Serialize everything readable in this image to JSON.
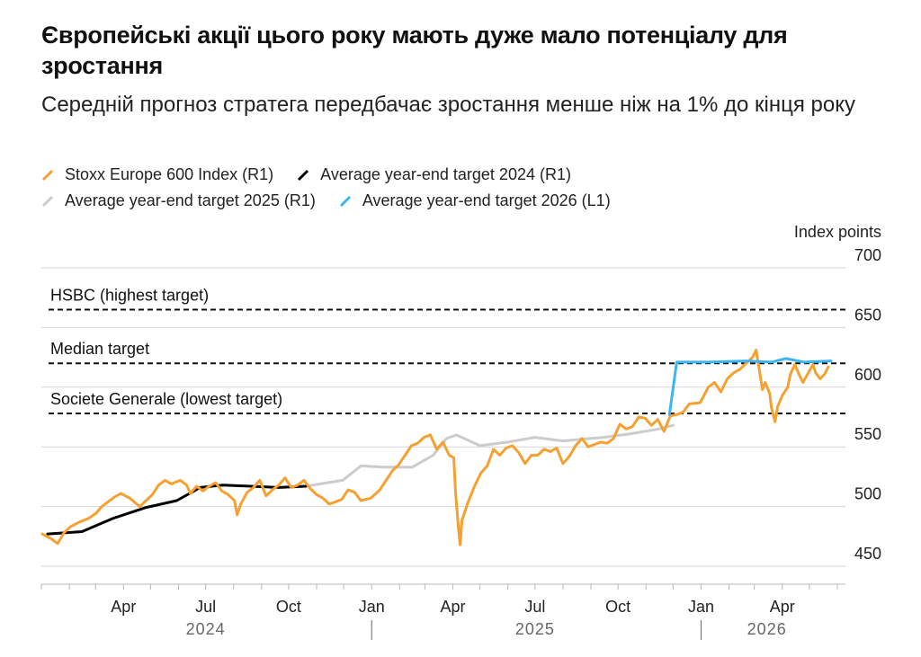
{
  "chart_data": {
    "type": "line",
    "title": "Європейські акції цього року мають дуже мало потенціалу для зростання",
    "subtitle": "Середній прогноз стратега передбачає зростання менше ніж на 1% до кінця року",
    "unit_label": "Index points",
    "y_ticks": [
      "700",
      "650",
      "600",
      "550",
      "500",
      "450"
    ],
    "y_range": [
      445,
      700
    ],
    "y_ticks_values": [
      700,
      650,
      600,
      550,
      500,
      450
    ],
    "x_range": [
      "2024-01-01",
      "2026-06-10"
    ],
    "x_ticks": [
      {
        "label": "Apr",
        "date": "2024-04-01"
      },
      {
        "label": "Jul",
        "date": "2024-07-01"
      },
      {
        "label": "Oct",
        "date": "2024-10-01"
      },
      {
        "label": "Jan",
        "date": "2025-01-01"
      },
      {
        "label": "Apr",
        "date": "2025-04-01"
      },
      {
        "label": "Jul",
        "date": "2025-07-01"
      },
      {
        "label": "Oct",
        "date": "2025-10-01"
      },
      {
        "label": "Jan",
        "date": "2026-01-01"
      },
      {
        "label": "Apr",
        "date": "2026-04-01"
      }
    ],
    "years": [
      {
        "label": "2024",
        "date": "2024-07-01"
      },
      {
        "label": "2025",
        "date": "2025-07-01"
      },
      {
        "label": "2026",
        "date": "2026-03-15"
      }
    ],
    "year_separators": [
      "2025-01-01",
      "2026-01-01"
    ],
    "grid": true,
    "legend_position": "top-left",
    "legend": [
      {
        "label": "Stoxx Europe 600 Index (R1)",
        "color": "#f5a030"
      },
      {
        "label": "Average year-end target 2024 (R1)",
        "color": "#000000"
      },
      {
        "label": "Average year-end target 2025 (R1)",
        "color": "#cccccc"
      },
      {
        "label": "Average year-end target 2026 (L1)",
        "color": "#3ab4f2"
      }
    ],
    "reference_lines": [
      {
        "label": "HSBC (highest target)",
        "value": 665
      },
      {
        "label": "Median target",
        "value": 620
      },
      {
        "label": "Societe Generale (lowest target)",
        "value": 578
      }
    ],
    "series": [
      {
        "name": "Stoxx Europe 600 Index (R1)",
        "color": "#f5a030",
        "points": [
          [
            "2024-01-02",
            477
          ],
          [
            "2024-01-12",
            473
          ],
          [
            "2024-01-19",
            469
          ],
          [
            "2024-01-26",
            478
          ],
          [
            "2024-02-02",
            483
          ],
          [
            "2024-02-12",
            487
          ],
          [
            "2024-02-22",
            490
          ],
          [
            "2024-03-01",
            494
          ],
          [
            "2024-03-08",
            500
          ],
          [
            "2024-03-15",
            504
          ],
          [
            "2024-03-22",
            508
          ],
          [
            "2024-03-29",
            511
          ],
          [
            "2024-04-08",
            507
          ],
          [
            "2024-04-19",
            500
          ],
          [
            "2024-04-26",
            505
          ],
          [
            "2024-05-03",
            510
          ],
          [
            "2024-05-10",
            518
          ],
          [
            "2024-05-17",
            522
          ],
          [
            "2024-05-24",
            519
          ],
          [
            "2024-06-03",
            522
          ],
          [
            "2024-06-10",
            518
          ],
          [
            "2024-06-14",
            511
          ],
          [
            "2024-06-21",
            517
          ],
          [
            "2024-06-28",
            513
          ],
          [
            "2024-07-05",
            517
          ],
          [
            "2024-07-12",
            520
          ],
          [
            "2024-07-19",
            513
          ],
          [
            "2024-07-26",
            510
          ],
          [
            "2024-08-02",
            505
          ],
          [
            "2024-08-05",
            493
          ],
          [
            "2024-08-09",
            502
          ],
          [
            "2024-08-16",
            512
          ],
          [
            "2024-08-23",
            516
          ],
          [
            "2024-08-30",
            522
          ],
          [
            "2024-09-06",
            509
          ],
          [
            "2024-09-13",
            514
          ],
          [
            "2024-09-20",
            518
          ],
          [
            "2024-09-27",
            524
          ],
          [
            "2024-10-04",
            516
          ],
          [
            "2024-10-11",
            518
          ],
          [
            "2024-10-18",
            522
          ],
          [
            "2024-10-25",
            515
          ],
          [
            "2024-11-01",
            510
          ],
          [
            "2024-11-08",
            507
          ],
          [
            "2024-11-15",
            502
          ],
          [
            "2024-11-22",
            504
          ],
          [
            "2024-11-29",
            506
          ],
          [
            "2024-12-06",
            514
          ],
          [
            "2024-12-13",
            512
          ],
          [
            "2024-12-20",
            505
          ],
          [
            "2024-12-31",
            507
          ],
          [
            "2025-01-10",
            514
          ],
          [
            "2025-01-17",
            522
          ],
          [
            "2025-01-24",
            530
          ],
          [
            "2025-01-31",
            535
          ],
          [
            "2025-02-07",
            543
          ],
          [
            "2025-02-14",
            551
          ],
          [
            "2025-02-21",
            553
          ],
          [
            "2025-02-28",
            558
          ],
          [
            "2025-03-07",
            560
          ],
          [
            "2025-03-14",
            548
          ],
          [
            "2025-03-21",
            554
          ],
          [
            "2025-03-28",
            543
          ],
          [
            "2025-04-02",
            541
          ],
          [
            "2025-04-04",
            512
          ],
          [
            "2025-04-07",
            483
          ],
          [
            "2025-04-09",
            468
          ],
          [
            "2025-04-11",
            488
          ],
          [
            "2025-04-17",
            502
          ],
          [
            "2025-04-25",
            517
          ],
          [
            "2025-05-02",
            528
          ],
          [
            "2025-05-09",
            534
          ],
          [
            "2025-05-16",
            548
          ],
          [
            "2025-05-23",
            543
          ],
          [
            "2025-05-30",
            549
          ],
          [
            "2025-06-06",
            551
          ],
          [
            "2025-06-13",
            545
          ],
          [
            "2025-06-20",
            536
          ],
          [
            "2025-06-27",
            543
          ],
          [
            "2025-07-04",
            543
          ],
          [
            "2025-07-11",
            548
          ],
          [
            "2025-07-18",
            546
          ],
          [
            "2025-07-25",
            549
          ],
          [
            "2025-08-01",
            536
          ],
          [
            "2025-08-08",
            542
          ],
          [
            "2025-08-15",
            551
          ],
          [
            "2025-08-22",
            557
          ],
          [
            "2025-08-29",
            550
          ],
          [
            "2025-09-05",
            552
          ],
          [
            "2025-09-12",
            554
          ],
          [
            "2025-09-19",
            553
          ],
          [
            "2025-09-26",
            557
          ],
          [
            "2025-10-03",
            569
          ],
          [
            "2025-10-10",
            565
          ],
          [
            "2025-10-17",
            567
          ],
          [
            "2025-10-24",
            575
          ],
          [
            "2025-10-31",
            574
          ],
          [
            "2025-11-07",
            568
          ],
          [
            "2025-11-14",
            573
          ],
          [
            "2025-11-21",
            563
          ],
          [
            "2025-11-28",
            576
          ],
          [
            "2025-12-05",
            577
          ],
          [
            "2025-12-12",
            579
          ],
          [
            "2025-12-19",
            586
          ],
          [
            "2025-12-31",
            587
          ],
          [
            "2026-01-09",
            600
          ],
          [
            "2026-01-16",
            604
          ],
          [
            "2026-01-23",
            596
          ],
          [
            "2026-01-30",
            607
          ],
          [
            "2026-02-06",
            612
          ],
          [
            "2026-02-13",
            615
          ],
          [
            "2026-02-20",
            620
          ],
          [
            "2026-02-27",
            625
          ],
          [
            "2026-03-03",
            631
          ],
          [
            "2026-03-06",
            617
          ],
          [
            "2026-03-10",
            598
          ],
          [
            "2026-03-13",
            604
          ],
          [
            "2026-03-18",
            595
          ],
          [
            "2026-03-20",
            583
          ],
          [
            "2026-03-24",
            571
          ],
          [
            "2026-03-27",
            584
          ],
          [
            "2026-04-01",
            593
          ],
          [
            "2026-04-07",
            600
          ],
          [
            "2026-04-10",
            611
          ],
          [
            "2026-04-15",
            619
          ],
          [
            "2026-04-20",
            610
          ],
          [
            "2026-04-24",
            604
          ],
          [
            "2026-04-29",
            611
          ],
          [
            "2026-05-05",
            619
          ],
          [
            "2026-05-08",
            612
          ],
          [
            "2026-05-13",
            607
          ],
          [
            "2026-05-18",
            611
          ],
          [
            "2026-05-22",
            617
          ]
        ]
      },
      {
        "name": "Average year-end target 2024 (R1)",
        "color": "#000000",
        "points": [
          [
            "2024-01-08",
            477
          ],
          [
            "2024-02-15",
            479
          ],
          [
            "2024-03-20",
            490
          ],
          [
            "2024-04-25",
            499
          ],
          [
            "2024-05-30",
            505
          ],
          [
            "2024-06-25",
            516
          ],
          [
            "2024-07-20",
            518
          ],
          [
            "2024-08-20",
            517
          ],
          [
            "2024-09-20",
            516
          ],
          [
            "2024-10-20",
            517
          ]
        ]
      },
      {
        "name": "Average year-end target 2025 (R1)",
        "color": "#cccccc",
        "points": [
          [
            "2024-10-20",
            517
          ],
          [
            "2024-11-30",
            522
          ],
          [
            "2024-12-20",
            534
          ],
          [
            "2025-01-15",
            533
          ],
          [
            "2025-02-15",
            533
          ],
          [
            "2025-03-10",
            543
          ],
          [
            "2025-03-25",
            557
          ],
          [
            "2025-04-05",
            560
          ],
          [
            "2025-05-01",
            551
          ],
          [
            "2025-06-01",
            554
          ],
          [
            "2025-07-01",
            558
          ],
          [
            "2025-08-01",
            555
          ],
          [
            "2025-09-15",
            558
          ],
          [
            "2025-10-15",
            561
          ],
          [
            "2025-11-15",
            565
          ],
          [
            "2025-12-01",
            568
          ]
        ]
      },
      {
        "name": "Average year-end target 2026 (L1)",
        "color": "#3ab4f2",
        "points": [
          [
            "2025-11-27",
            577
          ],
          [
            "2025-12-05",
            621
          ],
          [
            "2026-01-10",
            621
          ],
          [
            "2026-02-20",
            622
          ],
          [
            "2026-03-20",
            621
          ],
          [
            "2026-04-05",
            624
          ],
          [
            "2026-04-25",
            621
          ],
          [
            "2026-05-25",
            622
          ]
        ]
      }
    ]
  }
}
